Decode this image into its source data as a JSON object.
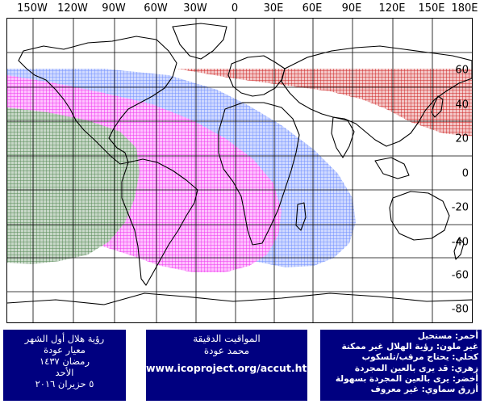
{
  "map": {
    "lon_labels": [
      "150W",
      "120W",
      "90W",
      "60W",
      "30W",
      "0",
      "30E",
      "60E",
      "90E",
      "120E",
      "150E",
      "180E"
    ],
    "lat_labels": [
      "60",
      "40",
      "20",
      "0",
      "-20",
      "-40",
      "-60",
      "-80"
    ],
    "grid": "on",
    "zones": [
      {
        "color_name": "red",
        "hex": "#cc0000",
        "region": "north-asia"
      },
      {
        "color_name": "blue",
        "hex": "#6688ff",
        "region": "atlantic-americas"
      },
      {
        "color_name": "magenta",
        "hex": "#ff33ff",
        "region": "americas-south-atlantic"
      },
      {
        "color_name": "green",
        "hex": "#448844",
        "region": "east-pacific"
      }
    ],
    "colors": {
      "land_outline": "#000000",
      "grid": "#000000",
      "panel_bg": "#000080",
      "panel_text": "#ffffff"
    }
  },
  "panels": {
    "left": {
      "lines": [
        "رؤية هلال أول الشهر",
        "معيار عودة",
        "رمضان ١٤٣٧",
        "الأحد",
        "٥ حزيران ٢٠١٦"
      ]
    },
    "middle": {
      "line1": "المواقيت الدقيقة",
      "line2": "محمد عودة",
      "url": "www.icoproject.org/accut.html"
    },
    "right": {
      "lines": [
        "أحمر: مستحيل",
        "غير ملون: رؤية الهلال غير ممكنة",
        "كحلي: يحتاج مرقب/تلسكوب",
        "زهري: قد يرى بالعين المجردة",
        "أخضر: يرى بالعين المجردة بسهولة",
        "أزرق سماوي: غير معروف"
      ]
    }
  }
}
